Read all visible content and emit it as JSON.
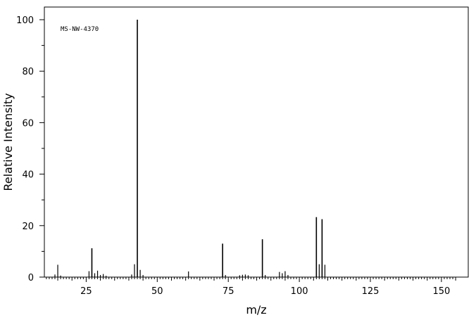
{
  "chart_data": {
    "type": "bar",
    "title": "",
    "annotation": "MS-NW-4370",
    "xlabel": "m/z",
    "ylabel": "Relative Intensity",
    "xlim": [
      10,
      160
    ],
    "ylim": [
      0,
      105
    ],
    "x_ticks": [
      25,
      50,
      75,
      100,
      125,
      150
    ],
    "y_ticks": [
      0,
      20,
      40,
      60,
      80,
      100
    ],
    "grid": false,
    "series": [
      {
        "x": [
          14,
          15,
          16,
          26,
          27,
          28,
          29,
          30,
          31,
          32,
          41,
          42,
          43,
          44,
          45,
          61,
          73,
          74,
          79,
          80,
          81,
          82,
          87,
          88,
          93,
          94,
          95,
          96,
          106,
          107,
          108,
          109
        ],
        "values": [
          1.0,
          4.8,
          0.6,
          2.3,
          11.2,
          1.5,
          2.5,
          0.8,
          1.2,
          0.5,
          1.0,
          5.0,
          100,
          2.8,
          0.8,
          2.2,
          13.0,
          0.8,
          0.7,
          0.9,
          1.0,
          0.7,
          14.7,
          0.8,
          2.0,
          1.5,
          2.3,
          0.8,
          23.3,
          5.0,
          22.5,
          4.8
        ]
      }
    ]
  }
}
